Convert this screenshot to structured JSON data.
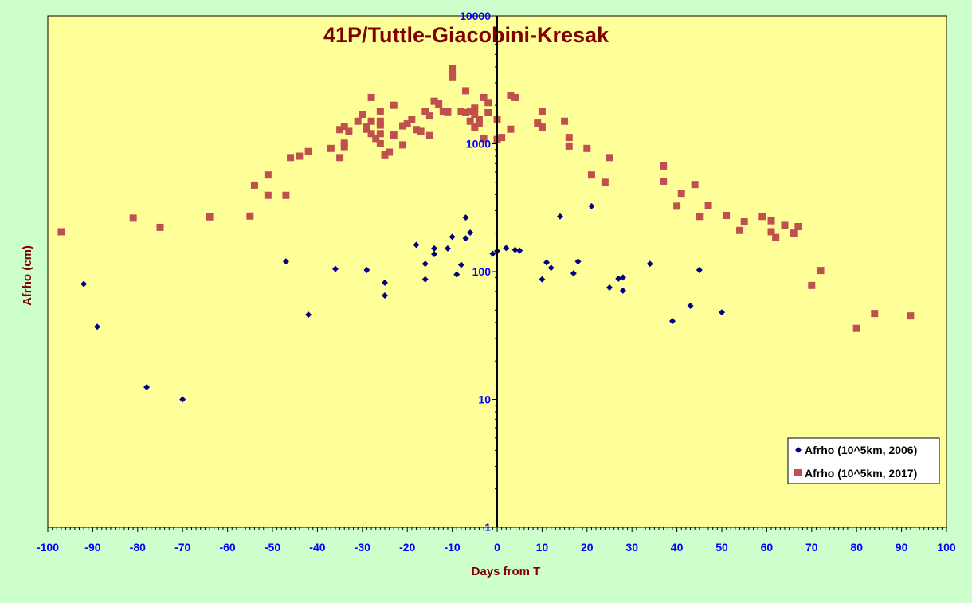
{
  "chart_data": {
    "type": "scatter",
    "title": "41P/Tuttle-Giacobini-Kresak",
    "xlabel": "Days from T",
    "ylabel": "Afrho (cm)",
    "xlim": [
      -100,
      100
    ],
    "ylim": [
      1,
      10000
    ],
    "yscale": "log",
    "x_ticks": [
      -100,
      -90,
      -80,
      -70,
      -60,
      -50,
      -40,
      -30,
      -20,
      -10,
      0,
      10,
      20,
      30,
      40,
      50,
      60,
      70,
      80,
      90,
      100
    ],
    "y_ticks": [
      1,
      10,
      100,
      1000,
      10000
    ],
    "legend_position": "bottom-right",
    "grid": false,
    "colors": {
      "background": "#ccffcc",
      "plot_area": "#ffff99",
      "series_2006": "#000080",
      "series_2017": "#c0504d",
      "text": "#800000",
      "ticks": "#0000ff"
    },
    "series": [
      {
        "name": "Afrho (10^5km, 2006)",
        "marker": "diamond",
        "points": [
          [
            -92,
            80
          ],
          [
            -89,
            37
          ],
          [
            -78,
            12.5
          ],
          [
            -70,
            10
          ],
          [
            -47,
            120
          ],
          [
            -42,
            46
          ],
          [
            -36,
            105
          ],
          [
            -29,
            103
          ],
          [
            -25,
            82
          ],
          [
            -25,
            65
          ],
          [
            -18,
            162
          ],
          [
            -16,
            115
          ],
          [
            -16,
            87
          ],
          [
            -14,
            152
          ],
          [
            -14,
            137
          ],
          [
            -11,
            152
          ],
          [
            -10,
            187
          ],
          [
            -9,
            95
          ],
          [
            -8,
            113
          ],
          [
            -7,
            265
          ],
          [
            -7,
            182
          ],
          [
            -6,
            202
          ],
          [
            -1,
            138
          ],
          [
            0,
            145
          ],
          [
            2,
            153
          ],
          [
            4,
            148
          ],
          [
            5,
            146
          ],
          [
            10,
            87
          ],
          [
            11,
            118
          ],
          [
            12,
            107
          ],
          [
            14,
            270
          ],
          [
            17,
            97
          ],
          [
            18,
            120
          ],
          [
            21,
            325
          ],
          [
            25,
            75
          ],
          [
            27,
            88
          ],
          [
            28,
            90
          ],
          [
            28,
            71
          ],
          [
            34,
            115
          ],
          [
            39,
            41
          ],
          [
            43,
            54
          ],
          [
            45,
            103
          ],
          [
            50,
            48
          ]
        ]
      },
      {
        "name": "Afrho (10^5km, 2017)",
        "marker": "square",
        "points": [
          [
            -97,
            205
          ],
          [
            -81,
            262
          ],
          [
            -75,
            222
          ],
          [
            -64,
            268
          ],
          [
            -55,
            272
          ],
          [
            -54,
            475
          ],
          [
            -51,
            570
          ],
          [
            -51,
            395
          ],
          [
            -47,
            395
          ],
          [
            -46,
            780
          ],
          [
            -44,
            800
          ],
          [
            -42,
            870
          ],
          [
            -37,
            920
          ],
          [
            -35,
            780
          ],
          [
            -35,
            1290
          ],
          [
            -34,
            1370
          ],
          [
            -34,
            1010
          ],
          [
            -34,
            950
          ],
          [
            -33,
            1250
          ],
          [
            -31,
            1500
          ],
          [
            -30,
            1700
          ],
          [
            -29,
            1300
          ],
          [
            -29,
            1350
          ],
          [
            -28,
            2300
          ],
          [
            -28,
            1500
          ],
          [
            -28,
            1200
          ],
          [
            -27,
            1100
          ],
          [
            -26,
            1800
          ],
          [
            -26,
            1400
          ],
          [
            -26,
            1200
          ],
          [
            -26,
            1500
          ],
          [
            -26,
            1000
          ],
          [
            -25,
            820
          ],
          [
            -24,
            860
          ],
          [
            -23,
            1170
          ],
          [
            -23,
            2000
          ],
          [
            -21,
            1380
          ],
          [
            -21,
            980
          ],
          [
            -20,
            1430
          ],
          [
            -19,
            1550
          ],
          [
            -18,
            1290
          ],
          [
            -17,
            1250
          ],
          [
            -16,
            1800
          ],
          [
            -15,
            1650
          ],
          [
            -15,
            1160
          ],
          [
            -14,
            2150
          ],
          [
            -13,
            2050
          ],
          [
            -12,
            1800
          ],
          [
            -11,
            1780
          ],
          [
            -10,
            3900
          ],
          [
            -10,
            3500
          ],
          [
            -10,
            3300
          ],
          [
            -8,
            1800
          ],
          [
            -7,
            2600
          ],
          [
            -7,
            1750
          ],
          [
            -6,
            1500
          ],
          [
            -6,
            1800
          ],
          [
            -5,
            1900
          ],
          [
            -5,
            1700
          ],
          [
            -5,
            1350
          ],
          [
            -4,
            1550
          ],
          [
            -4,
            1450
          ],
          [
            -3,
            2300
          ],
          [
            -3,
            1100
          ],
          [
            -2,
            2100
          ],
          [
            -2,
            1750
          ],
          [
            0,
            1080
          ],
          [
            0,
            1550
          ],
          [
            1,
            1120
          ],
          [
            3,
            2400
          ],
          [
            3,
            1300
          ],
          [
            4,
            2300
          ],
          [
            9,
            1450
          ],
          [
            10,
            1350
          ],
          [
            10,
            1800
          ],
          [
            15,
            1500
          ],
          [
            16,
            1120
          ],
          [
            16,
            960
          ],
          [
            20,
            920
          ],
          [
            21,
            570
          ],
          [
            24,
            500
          ],
          [
            25,
            780
          ],
          [
            37,
            670
          ],
          [
            37,
            510
          ],
          [
            40,
            325
          ],
          [
            41,
            410
          ],
          [
            44,
            480
          ],
          [
            45,
            270
          ],
          [
            47,
            330
          ],
          [
            51,
            275
          ],
          [
            54,
            210
          ],
          [
            55,
            245
          ],
          [
            59,
            270
          ],
          [
            61,
            250
          ],
          [
            61,
            205
          ],
          [
            62,
            185
          ],
          [
            64,
            230
          ],
          [
            66,
            200
          ],
          [
            67,
            225
          ],
          [
            70,
            78
          ],
          [
            72,
            102
          ],
          [
            80,
            36
          ],
          [
            84,
            47
          ],
          [
            92,
            45
          ]
        ]
      }
    ]
  }
}
